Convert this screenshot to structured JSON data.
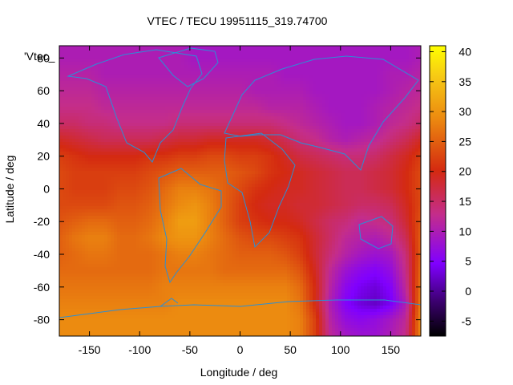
{
  "chart_data": {
    "type": "heatmap",
    "title": "VTEC / TECU 19951115_319.74700",
    "xlabel": "Longitude / deg",
    "ylabel": "Latitude / deg",
    "key_label": "'Vtec_",
    "xlim": [
      -180,
      180
    ],
    "ylim": [
      -90,
      87.5
    ],
    "xticks": [
      -150,
      -100,
      -50,
      0,
      50,
      100,
      150
    ],
    "yticks": [
      -80,
      -60,
      -40,
      -20,
      0,
      20,
      40,
      60,
      80
    ],
    "colorbar": {
      "range": [
        -7.5,
        41
      ],
      "ticks": [
        -5,
        0,
        5,
        10,
        15,
        20,
        25,
        30,
        35,
        40
      ],
      "palette": "black-purple-violet-red-orange-yellow"
    },
    "grid": false,
    "legend_position": "top-left",
    "lon": [
      -180,
      -165,
      -150,
      -135,
      -120,
      -105,
      -90,
      -75,
      -60,
      -45,
      -30,
      -15,
      0,
      15,
      30,
      45,
      60,
      75,
      90,
      105,
      120,
      135,
      150,
      165,
      180
    ],
    "lat": [
      87.5,
      80,
      70,
      60,
      50,
      40,
      30,
      20,
      10,
      0,
      -10,
      -20,
      -30,
      -40,
      -50,
      -60,
      -70,
      -80,
      -90
    ],
    "values": [
      [
        10,
        10,
        10,
        10,
        10,
        10,
        10,
        10,
        10,
        9,
        9,
        9,
        9,
        9,
        9,
        9,
        9,
        9,
        9,
        9,
        9,
        9,
        9,
        9,
        10
      ],
      [
        10,
        10,
        10,
        10,
        10,
        10,
        10,
        10,
        10,
        9,
        9,
        9,
        9,
        9,
        9,
        9,
        9,
        9,
        9,
        9,
        9,
        9,
        9,
        9,
        10
      ],
      [
        11,
        11,
        11,
        10,
        10,
        10,
        10,
        10,
        10,
        10,
        10,
        10,
        10,
        10,
        10,
        9,
        9,
        9,
        9,
        9,
        9,
        9,
        10,
        10,
        11
      ],
      [
        12,
        12,
        12,
        11,
        11,
        11,
        11,
        11,
        11,
        11,
        11,
        11,
        11,
        10,
        10,
        10,
        10,
        9,
        9,
        9,
        9,
        9,
        10,
        11,
        12
      ],
      [
        13,
        13,
        13,
        12,
        12,
        12,
        12,
        12,
        12,
        12,
        12,
        12,
        12,
        12,
        11,
        11,
        11,
        10,
        9,
        9,
        9,
        10,
        11,
        12,
        13
      ],
      [
        15,
        15,
        14,
        14,
        13,
        13,
        13,
        13,
        14,
        14,
        14,
        14,
        14,
        14,
        14,
        13,
        12,
        11,
        10,
        9,
        9,
        10,
        12,
        13,
        15
      ],
      [
        19,
        18,
        17,
        16,
        16,
        16,
        16,
        17,
        18,
        18,
        19,
        19,
        19,
        19,
        18,
        16,
        14,
        13,
        11,
        10,
        11,
        12,
        14,
        16,
        19
      ],
      [
        22,
        21,
        20,
        20,
        20,
        20,
        21,
        21,
        22,
        22,
        23,
        23,
        22,
        22,
        21,
        19,
        17,
        16,
        15,
        14,
        14,
        15,
        17,
        19,
        22
      ],
      [
        23,
        22,
        22,
        22,
        22,
        22,
        23,
        24,
        25,
        25,
        25,
        25,
        24,
        23,
        21,
        20,
        19,
        18,
        17,
        16,
        16,
        17,
        18,
        20,
        23
      ],
      [
        23,
        22,
        22,
        22,
        23,
        23,
        24,
        26,
        28,
        28,
        27,
        25,
        23,
        21,
        20,
        19,
        19,
        18,
        17,
        16,
        16,
        17,
        18,
        20,
        23
      ],
      [
        23,
        23,
        23,
        23,
        24,
        24,
        25,
        27,
        29,
        30,
        28,
        25,
        22,
        20,
        19,
        19,
        18,
        18,
        17,
        16,
        15,
        15,
        16,
        19,
        23
      ],
      [
        24,
        25,
        26,
        26,
        25,
        25,
        26,
        28,
        31,
        31,
        28,
        25,
        22,
        21,
        20,
        20,
        19,
        17,
        15,
        14,
        12,
        13,
        14,
        18,
        24
      ],
      [
        25,
        27,
        28,
        28,
        26,
        26,
        27,
        29,
        30,
        30,
        28,
        26,
        24,
        23,
        23,
        22,
        21,
        18,
        15,
        12,
        11,
        10,
        12,
        16,
        25
      ],
      [
        25,
        26,
        27,
        27,
        26,
        26,
        26,
        27,
        28,
        28,
        27,
        26,
        25,
        25,
        25,
        24,
        22,
        18,
        14,
        11,
        9,
        8,
        9,
        14,
        25
      ],
      [
        26,
        26,
        26,
        26,
        26,
        26,
        26,
        27,
        27,
        27,
        27,
        26,
        26,
        26,
        26,
        26,
        24,
        19,
        12,
        8,
        6,
        5,
        7,
        13,
        26
      ],
      [
        27,
        27,
        27,
        27,
        27,
        27,
        27,
        28,
        28,
        28,
        28,
        28,
        28,
        28,
        28,
        28,
        26,
        20,
        11,
        6,
        4,
        3,
        5,
        12,
        27
      ],
      [
        28,
        28,
        28,
        28,
        28,
        28,
        28,
        28,
        29,
        29,
        29,
        29,
        29,
        29,
        29,
        29,
        27,
        20,
        10,
        5,
        3,
        2,
        4,
        10,
        28
      ],
      [
        29,
        29,
        29,
        29,
        29,
        29,
        29,
        29,
        29,
        29,
        29,
        29,
        29,
        29,
        29,
        29,
        28,
        22,
        11,
        7,
        6,
        7,
        9,
        12,
        29
      ],
      [
        29,
        29,
        29,
        29,
        29,
        29,
        29,
        29,
        29,
        29,
        29,
        29,
        29,
        29,
        29,
        29,
        28,
        22,
        12,
        9,
        8,
        8,
        10,
        13,
        29
      ]
    ]
  }
}
